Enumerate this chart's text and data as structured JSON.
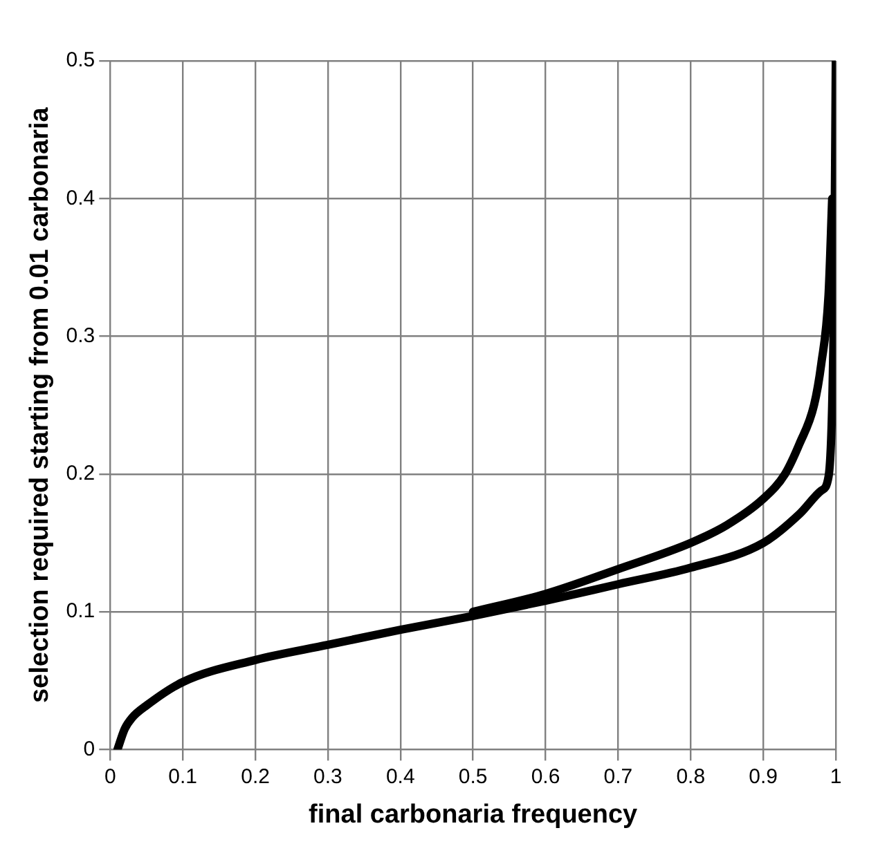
{
  "chart_data": {
    "type": "line",
    "xlabel": "final carbonaria frequency",
    "ylabel": "selection required starting from 0.01 carbonaria",
    "xlim": [
      0,
      1
    ],
    "xticks": [
      0,
      0.1,
      0.2,
      0.3,
      0.4,
      0.5,
      0.6,
      0.7,
      0.8,
      0.9,
      1
    ],
    "ylim": [
      0,
      0.5
    ],
    "yticks": [
      0,
      0.1,
      0.2,
      0.3,
      0.4,
      0.5
    ],
    "grid": true,
    "legend": false,
    "marker": "none",
    "line_style": "solid",
    "series": [
      {
        "color": "#000000",
        "x": [
          0.5,
          0.6,
          0.7,
          0.8,
          0.85,
          0.9,
          0.93,
          0.95,
          0.97,
          0.98,
          0.99,
          0.995
        ],
        "values": [
          0.1,
          0.113,
          0.131,
          0.15,
          0.163,
          0.182,
          0.2,
          0.222,
          0.25,
          0.28,
          0.33,
          0.4
        ]
      },
      {
        "color": "#000000",
        "x": [
          0.01,
          0.02,
          0.03,
          0.05,
          0.1,
          0.2,
          0.3,
          0.4,
          0.5,
          0.6,
          0.7,
          0.8,
          0.9,
          0.95,
          0.98,
          0.99,
          0.995,
          0.998,
          1
        ],
        "values": [
          0,
          0.015,
          0.023,
          0.032,
          0.049,
          0.065,
          0.076,
          0.087,
          0.097,
          0.108,
          0.12,
          0.132,
          0.15,
          0.171,
          0.188,
          0.198,
          0.25,
          0.35,
          0.5
        ]
      }
    ]
  }
}
